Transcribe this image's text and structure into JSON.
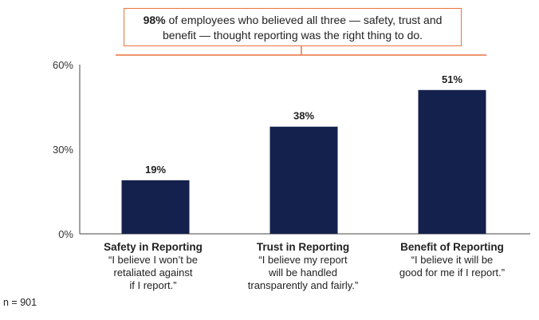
{
  "callout": {
    "emphasis": "98%",
    "line1_rest": " of employees who believed all three — safety, trust and",
    "line2": "benefit — thought reporting was the right thing to do."
  },
  "chart_data": {
    "type": "bar",
    "categories": [
      "Safety in Reporting",
      "Trust in Reporting",
      "Benefit of Reporting"
    ],
    "values": [
      19,
      38,
      51
    ],
    "value_labels": [
      "19%",
      "38%",
      "51%"
    ],
    "ylim": [
      0,
      60
    ],
    "yticks": [
      0,
      30,
      60
    ],
    "ytick_labels": [
      "0%",
      "30%",
      "60%"
    ],
    "grid": false,
    "bar_color": "#14214d",
    "accent_color": "#e8743b"
  },
  "categories": [
    {
      "title": "Safety in Reporting",
      "quote_lines": [
        "“I believe I won’t be",
        "retaliated against",
        "if I report.”"
      ]
    },
    {
      "title": "Trust in Reporting",
      "quote_lines": [
        "“I believe my report",
        "will be handled",
        "transparently and fairly.”"
      ]
    },
    {
      "title": "Benefit of Reporting",
      "quote_lines": [
        "“I believe it will be",
        "good for me if I report.”"
      ]
    }
  ],
  "footnote": "n = 901"
}
